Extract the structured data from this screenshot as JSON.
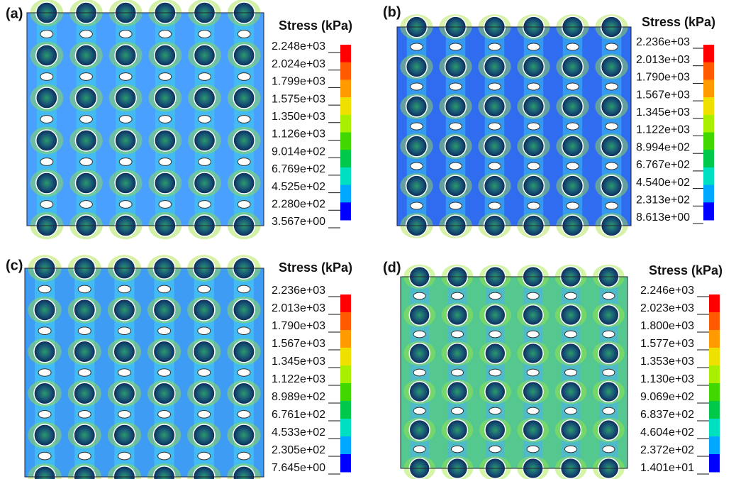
{
  "panels": [
    {
      "label": "(a)",
      "colorbar": {
        "title": "Stress (kPa)",
        "ticks": [
          "2.248e+03",
          "2.024e+03",
          "1.799e+03",
          "1.575e+03",
          "1.350e+03",
          "1.126e+03",
          "9.014e+02",
          "6.769e+02",
          "4.525e+02",
          "2.280e+02",
          "3.567e+00"
        ]
      }
    },
    {
      "label": "(b)",
      "colorbar": {
        "title": "Stress (kPa)",
        "ticks": [
          "2.236e+03",
          "2.013e+03",
          "1.790e+03",
          "1.567e+03",
          "1.345e+03",
          "1.122e+03",
          "8.994e+02",
          "6.767e+02",
          "4.540e+02",
          "2.313e+02",
          "8.613e+00"
        ]
      }
    },
    {
      "label": "(c)",
      "colorbar": {
        "title": "Stress (kPa)",
        "ticks": [
          "2.236e+03",
          "2.013e+03",
          "1.790e+03",
          "1.567e+03",
          "1.345e+03",
          "1.122e+03",
          "8.989e+02",
          "6.761e+02",
          "4.533e+02",
          "2.305e+02",
          "7.645e+00"
        ]
      }
    },
    {
      "label": "(d)",
      "colorbar": {
        "title": "Stress (kPa)",
        "ticks": [
          "2.246e+03",
          "2.023e+03",
          "1.800e+03",
          "1.577e+03",
          "1.353e+03",
          "1.130e+03",
          "9.069e+02",
          "6.837e+02",
          "4.604e+02",
          "2.372e+02",
          "1.401e+01"
        ]
      }
    }
  ]
}
